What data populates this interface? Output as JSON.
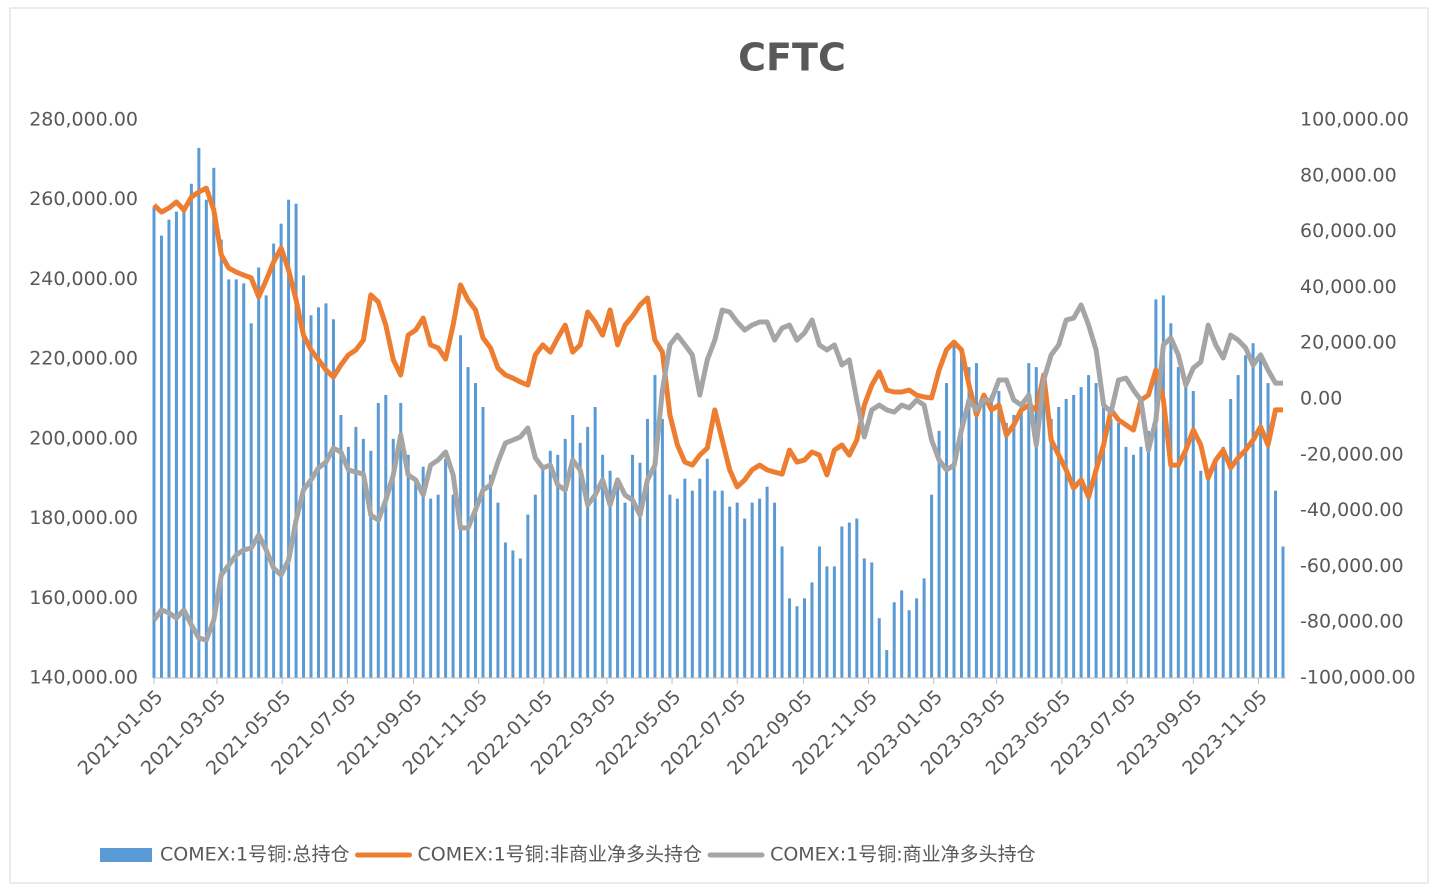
{
  "chart_data": {
    "type": "bar-line",
    "title": "CFTC",
    "x": [
      "2021-01-05",
      "2021-01-12",
      "2021-01-19",
      "2021-01-26",
      "2021-02-02",
      "2021-02-09",
      "2021-02-16",
      "2021-02-23",
      "2021-03-02",
      "2021-03-09",
      "2021-03-16",
      "2021-03-23",
      "2021-03-30",
      "2021-04-06",
      "2021-04-13",
      "2021-04-20",
      "2021-04-27",
      "2021-05-04",
      "2021-05-11",
      "2021-05-18",
      "2021-05-25",
      "2021-06-01",
      "2021-06-08",
      "2021-06-15",
      "2021-06-22",
      "2021-06-29",
      "2021-07-06",
      "2021-07-13",
      "2021-07-20",
      "2021-07-27",
      "2021-08-03",
      "2021-08-10",
      "2021-08-17",
      "2021-08-24",
      "2021-08-31",
      "2021-09-07",
      "2021-09-14",
      "2021-09-21",
      "2021-09-28",
      "2021-10-05",
      "2021-10-12",
      "2021-10-19",
      "2021-10-26",
      "2021-11-02",
      "2021-11-09",
      "2021-11-16",
      "2021-11-23",
      "2021-11-30",
      "2021-12-07",
      "2021-12-14",
      "2021-12-21",
      "2021-12-28",
      "2022-01-04",
      "2022-01-11",
      "2022-01-18",
      "2022-01-25",
      "2022-02-01",
      "2022-02-08",
      "2022-02-15",
      "2022-02-22",
      "2022-03-01",
      "2022-03-08",
      "2022-03-15",
      "2022-03-22",
      "2022-03-29",
      "2022-04-05",
      "2022-04-12",
      "2022-04-19",
      "2022-04-26",
      "2022-05-03",
      "2022-05-10",
      "2022-05-17",
      "2022-05-24",
      "2022-05-31",
      "2022-06-07",
      "2022-06-14",
      "2022-06-21",
      "2022-06-28",
      "2022-07-05",
      "2022-07-12",
      "2022-07-19",
      "2022-07-26",
      "2022-08-02",
      "2022-08-09",
      "2022-08-16",
      "2022-08-23",
      "2022-08-30",
      "2022-09-06",
      "2022-09-13",
      "2022-09-20",
      "2022-09-27",
      "2022-10-04",
      "2022-10-11",
      "2022-10-18",
      "2022-10-25",
      "2022-11-01",
      "2022-11-08",
      "2022-11-15",
      "2022-11-22",
      "2022-11-29",
      "2022-12-06",
      "2022-12-13",
      "2022-12-20",
      "2022-12-27",
      "2023-01-03",
      "2023-01-10",
      "2023-01-17",
      "2023-01-24",
      "2023-01-31",
      "2023-02-07",
      "2023-02-14",
      "2023-02-21",
      "2023-02-28",
      "2023-03-07",
      "2023-03-14",
      "2023-03-21",
      "2023-03-28",
      "2023-04-04",
      "2023-04-11",
      "2023-04-18",
      "2023-04-25",
      "2023-05-02",
      "2023-05-09",
      "2023-05-16",
      "2023-05-23",
      "2023-05-30",
      "2023-06-06",
      "2023-06-13",
      "2023-06-20",
      "2023-06-27",
      "2023-07-04",
      "2023-07-11",
      "2023-07-18",
      "2023-07-25",
      "2023-08-01",
      "2023-08-08",
      "2023-08-15",
      "2023-08-22",
      "2023-08-29",
      "2023-09-05",
      "2023-09-12",
      "2023-09-19",
      "2023-09-26",
      "2023-10-03",
      "2023-10-10",
      "2023-10-17",
      "2023-10-24",
      "2023-10-31",
      "2023-11-07",
      "2023-11-14",
      "2023-11-21",
      "2023-11-28"
    ],
    "xlim": [
      "2021-01-05",
      "2023-11-28"
    ],
    "xticks": [
      "2021-01-05",
      "2021-03-05",
      "2021-05-05",
      "2021-07-05",
      "2021-09-05",
      "2021-11-05",
      "2022-01-05",
      "2022-03-05",
      "2022-05-05",
      "2022-07-05",
      "2022-09-05",
      "2022-11-05",
      "2023-01-05",
      "2023-03-05",
      "2023-05-05",
      "2023-07-05",
      "2023-09-05",
      "2023-11-05"
    ],
    "ylim": [
      140000,
      280000
    ],
    "yticks": [
      {
        "value": 140000,
        "label": "140,000.00"
      },
      {
        "value": 160000,
        "label": "160,000.00"
      },
      {
        "value": 180000,
        "label": "180,000.00"
      },
      {
        "value": 200000,
        "label": "200,000.00"
      },
      {
        "value": 220000,
        "label": "220,000.00"
      },
      {
        "value": 240000,
        "label": "240,000.00"
      },
      {
        "value": 260000,
        "label": "260,000.00"
      },
      {
        "value": 280000,
        "label": "280,000.00"
      }
    ],
    "y2lim": [
      -100000,
      100000
    ],
    "y2ticks": [
      {
        "value": -100000,
        "label": "-100,000.00"
      },
      {
        "value": -80000,
        "label": "-80,000.00"
      },
      {
        "value": -60000,
        "label": "-60,000.00"
      },
      {
        "value": -40000,
        "label": "-40,000.00"
      },
      {
        "value": -20000,
        "label": "-20,000.00"
      },
      {
        "value": 0,
        "label": "0.00"
      },
      {
        "value": 20000,
        "label": "20,000.00"
      },
      {
        "value": 40000,
        "label": "40,000.00"
      },
      {
        "value": 60000,
        "label": "60,000.00"
      },
      {
        "value": 80000,
        "label": "80,000.00"
      },
      {
        "value": 100000,
        "label": "100,000.00"
      }
    ],
    "legend": "bottom",
    "series": [
      {
        "name": "COMEX:1号铜:总持仓",
        "type": "bar",
        "color": "#5b9bd5",
        "values": [
          258000,
          251000,
          255000,
          257000,
          257000,
          264000,
          273000,
          260000,
          268000,
          250000,
          240000,
          240000,
          239000,
          229000,
          243000,
          236000,
          249000,
          254000,
          260000,
          259000,
          241000,
          231000,
          233000,
          234000,
          230000,
          206000,
          198000,
          203000,
          200000,
          197000,
          209000,
          211000,
          200000,
          209000,
          196000,
          190000,
          193000,
          185000,
          186000,
          195000,
          186000,
          226000,
          218000,
          214000,
          208000,
          191000,
          184000,
          174000,
          172000,
          170000,
          181000,
          186000,
          193000,
          197000,
          196000,
          200000,
          206000,
          199000,
          203000,
          208000,
          196000,
          192000,
          188000,
          184000,
          196000,
          194000,
          205000,
          216000,
          205000,
          186000,
          185000,
          190000,
          187000,
          190000,
          195000,
          187000,
          187000,
          183000,
          184000,
          180000,
          184000,
          185000,
          188000,
          184000,
          173000,
          160000,
          158000,
          160000,
          164000,
          173000,
          168000,
          168000,
          178000,
          179000,
          180000,
          170000,
          169000,
          155000,
          147000,
          159000,
          162000,
          157000,
          160000,
          165000,
          186000,
          202000,
          214000,
          224000,
          222000,
          218000,
          219000,
          209000,
          211000,
          212000,
          204000,
          206000,
          209000,
          219000,
          218000,
          216000,
          205000,
          208000,
          210000,
          211000,
          213000,
          216000,
          214000,
          209000,
          205000,
          204000,
          198000,
          196000,
          198000,
          202000,
          235000,
          236000,
          229000,
          218000,
          214000,
          212000,
          192000,
          191000,
          194000,
          198000,
          210000,
          216000,
          221000,
          224000,
          220000,
          214000,
          187000,
          173000
        ]
      },
      {
        "name": "COMEX:1号铜:非商业净多头持仓",
        "type": "line",
        "axis": "y2",
        "color": "#ed7d31",
        "values": [
          69500,
          67000,
          68500,
          70600,
          67700,
          72400,
          74200,
          75600,
          67700,
          51600,
          46900,
          45500,
          44400,
          43400,
          36600,
          42600,
          49100,
          54100,
          46200,
          35500,
          22900,
          17600,
          14000,
          10400,
          7900,
          12200,
          15800,
          17600,
          21100,
          37300,
          34800,
          26500,
          14000,
          8600,
          22900,
          24700,
          29000,
          19400,
          18300,
          14300,
          26500,
          40900,
          35500,
          31900,
          21900,
          18300,
          11100,
          8600,
          7500,
          6100,
          5000,
          15800,
          19400,
          16800,
          21900,
          26500,
          16800,
          19400,
          31200,
          27600,
          22900,
          31900,
          19400,
          26500,
          29700,
          33700,
          36200,
          21100,
          16800,
          -5700,
          -16500,
          -22600,
          -23700,
          -20100,
          -17600,
          -3900,
          -14700,
          -25400,
          -31500,
          -29000,
          -25400,
          -23700,
          -25400,
          -26200,
          -26900,
          -18300,
          -22600,
          -21900,
          -19000,
          -20100,
          -27200,
          -18300,
          -16500,
          -20100,
          -14700,
          -2200,
          5000,
          9700,
          3200,
          2500,
          2500,
          3200,
          1400,
          700,
          400,
          10400,
          17600,
          20400,
          17600,
          5000,
          -5700,
          1400,
          -3900,
          -2200,
          -12900,
          -9300,
          -3900,
          -2200,
          -3900,
          8600,
          -14700,
          -20100,
          -25400,
          -31900,
          -29000,
          -35100,
          -25400,
          -16500,
          -3900,
          -7500,
          -9300,
          -11100,
          -400,
          1400,
          10400,
          -400,
          -23700,
          -23700,
          -18300,
          -11100,
          -16500,
          -28300,
          -21900,
          -18300,
          -24700,
          -21100,
          -18300,
          -14700,
          -10000,
          -16500,
          -3900,
          -3900
        ]
      },
      {
        "name": "COMEX:1号铜:商业净多头持仓",
        "type": "line",
        "axis": "y2",
        "color": "#a5a5a5",
        "values": [
          -79200,
          -75600,
          -76700,
          -78500,
          -75600,
          -81000,
          -85700,
          -86400,
          -79200,
          -63100,
          -59500,
          -55900,
          -54100,
          -53400,
          -48700,
          -54100,
          -60600,
          -63100,
          -57700,
          -43400,
          -32600,
          -29000,
          -24700,
          -22600,
          -17600,
          -19000,
          -25400,
          -26200,
          -26900,
          -41600,
          -43400,
          -36200,
          -27200,
          -12900,
          -27200,
          -29000,
          -34400,
          -23700,
          -21900,
          -19000,
          -27200,
          -46200,
          -46200,
          -39800,
          -32600,
          -30800,
          -22600,
          -15800,
          -14700,
          -13600,
          -10400,
          -21100,
          -24700,
          -23700,
          -30800,
          -32600,
          -21900,
          -25400,
          -38000,
          -34400,
          -29000,
          -38000,
          -29000,
          -34400,
          -36200,
          -41600,
          -29000,
          -23700,
          3200,
          19400,
          22900,
          19400,
          15800,
          1400,
          14000,
          21100,
          31900,
          31200,
          27600,
          24700,
          26500,
          27600,
          27600,
          21100,
          25400,
          26500,
          21100,
          23700,
          28300,
          19400,
          17600,
          19400,
          12200,
          14000,
          -400,
          -13600,
          -3900,
          -2200,
          -3900,
          -4700,
          -2200,
          -3200,
          -400,
          -2200,
          -14700,
          -21900,
          -25400,
          -23700,
          -11100,
          -400,
          -3900,
          -400,
          -400,
          6800,
          6800,
          -400,
          -2200,
          1400,
          -16500,
          6800,
          15800,
          19400,
          28300,
          29000,
          33700,
          26500,
          17600,
          -2200,
          -4700,
          6800,
          7500,
          3200,
          -400,
          -18300,
          -7500,
          19400,
          21900,
          15800,
          5000,
          11100,
          13300,
          26500,
          19400,
          14700,
          22900,
          21100,
          18300,
          12200,
          15800,
          10400,
          5700,
          5700
        ]
      }
    ]
  }
}
